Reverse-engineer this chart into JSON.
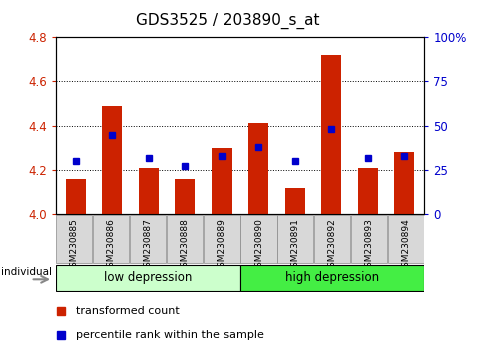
{
  "title": "GDS3525 / 203890_s_at",
  "samples": [
    "GSM230885",
    "GSM230886",
    "GSM230887",
    "GSM230888",
    "GSM230889",
    "GSM230890",
    "GSM230891",
    "GSM230892",
    "GSM230893",
    "GSM230894"
  ],
  "transformed_count": [
    4.16,
    4.49,
    4.21,
    4.16,
    4.3,
    4.41,
    4.12,
    4.72,
    4.21,
    4.28
  ],
  "percentile_rank": [
    30,
    45,
    32,
    27,
    33,
    38,
    30,
    48,
    32,
    33
  ],
  "ylim_left": [
    4.0,
    4.8
  ],
  "ylim_right": [
    0,
    100
  ],
  "yticks_left": [
    4.0,
    4.2,
    4.4,
    4.6,
    4.8
  ],
  "yticks_right": [
    0,
    25,
    50,
    75,
    100
  ],
  "ytick_labels_right": [
    "0",
    "25",
    "50",
    "75",
    "100%"
  ],
  "bar_color": "#cc2200",
  "dot_color": "#0000cc",
  "group1_label": "low depression",
  "group2_label": "high depression",
  "group1_color": "#ccffcc",
  "group2_color": "#44ee44",
  "group1_indices": [
    0,
    1,
    2,
    3,
    4
  ],
  "group2_indices": [
    5,
    6,
    7,
    8,
    9
  ],
  "bar_width": 0.55,
  "legend_red_label": "transformed count",
  "legend_blue_label": "percentile rank within the sample",
  "title_fontsize": 11,
  "tick_color_left": "#cc2200",
  "tick_color_right": "#0000cc",
  "individual_label": "individual",
  "sample_box_color": "#d8d8d8",
  "xlim": [
    -0.55,
    9.55
  ]
}
